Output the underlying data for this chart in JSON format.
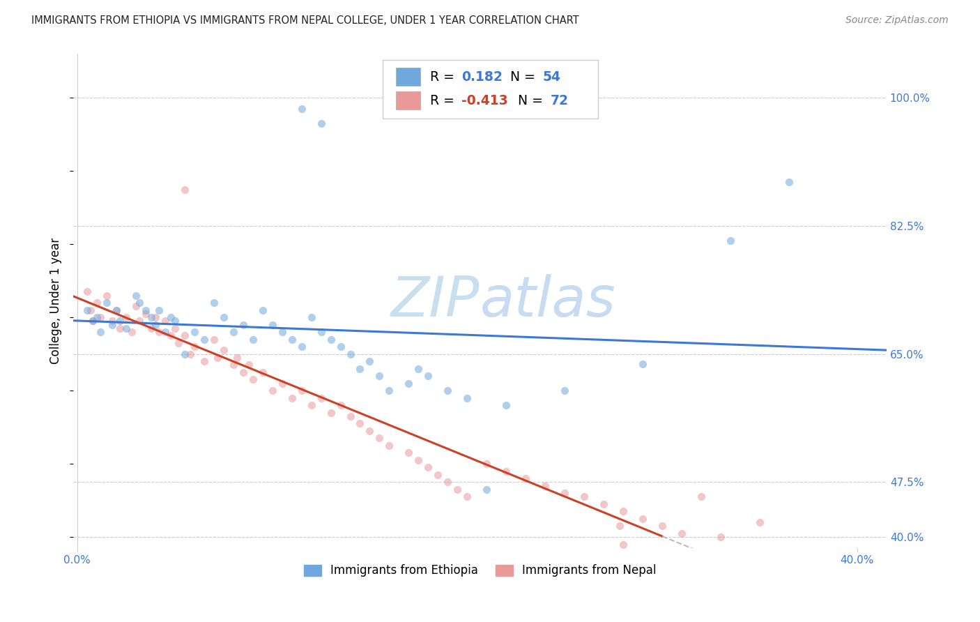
{
  "title": "IMMIGRANTS FROM ETHIOPIA VS IMMIGRANTS FROM NEPAL COLLEGE, UNDER 1 YEAR CORRELATION CHART",
  "source": "Source: ZipAtlas.com",
  "ylabel": "College, Under 1 year",
  "xlim_min": -0.002,
  "xlim_max": 0.415,
  "ylim_min": 0.385,
  "ylim_max": 1.06,
  "ytick_positions": [
    1.0,
    0.825,
    0.65,
    0.475,
    0.4
  ],
  "ytick_labels": [
    "100.0%",
    "82.5%",
    "65.0%",
    "47.5%",
    "40.0%"
  ],
  "xtick_positions": [
    0.0,
    0.4
  ],
  "xtick_labels": [
    "0.0%",
    "40.0%"
  ],
  "grid_color": "#cccccc",
  "watermark_text": "ZIPatlas",
  "watermark_color": "#ccdff0",
  "legend_R1": "0.182",
  "legend_N1": "54",
  "legend_R2": "-0.413",
  "legend_N2": "72",
  "color_ethiopia": "#6fa8dc",
  "color_nepal": "#ea9999",
  "line_color_ethiopia": "#3c78d8",
  "line_color_nepal": "#cc4125",
  "tick_label_color": "#3c78d8",
  "scatter_alpha": 0.55,
  "marker_size": 65,
  "n_ethiopia": 54,
  "n_nepal": 72,
  "R_ethiopia": 0.182,
  "R_nepal": -0.413,
  "seed": 77
}
